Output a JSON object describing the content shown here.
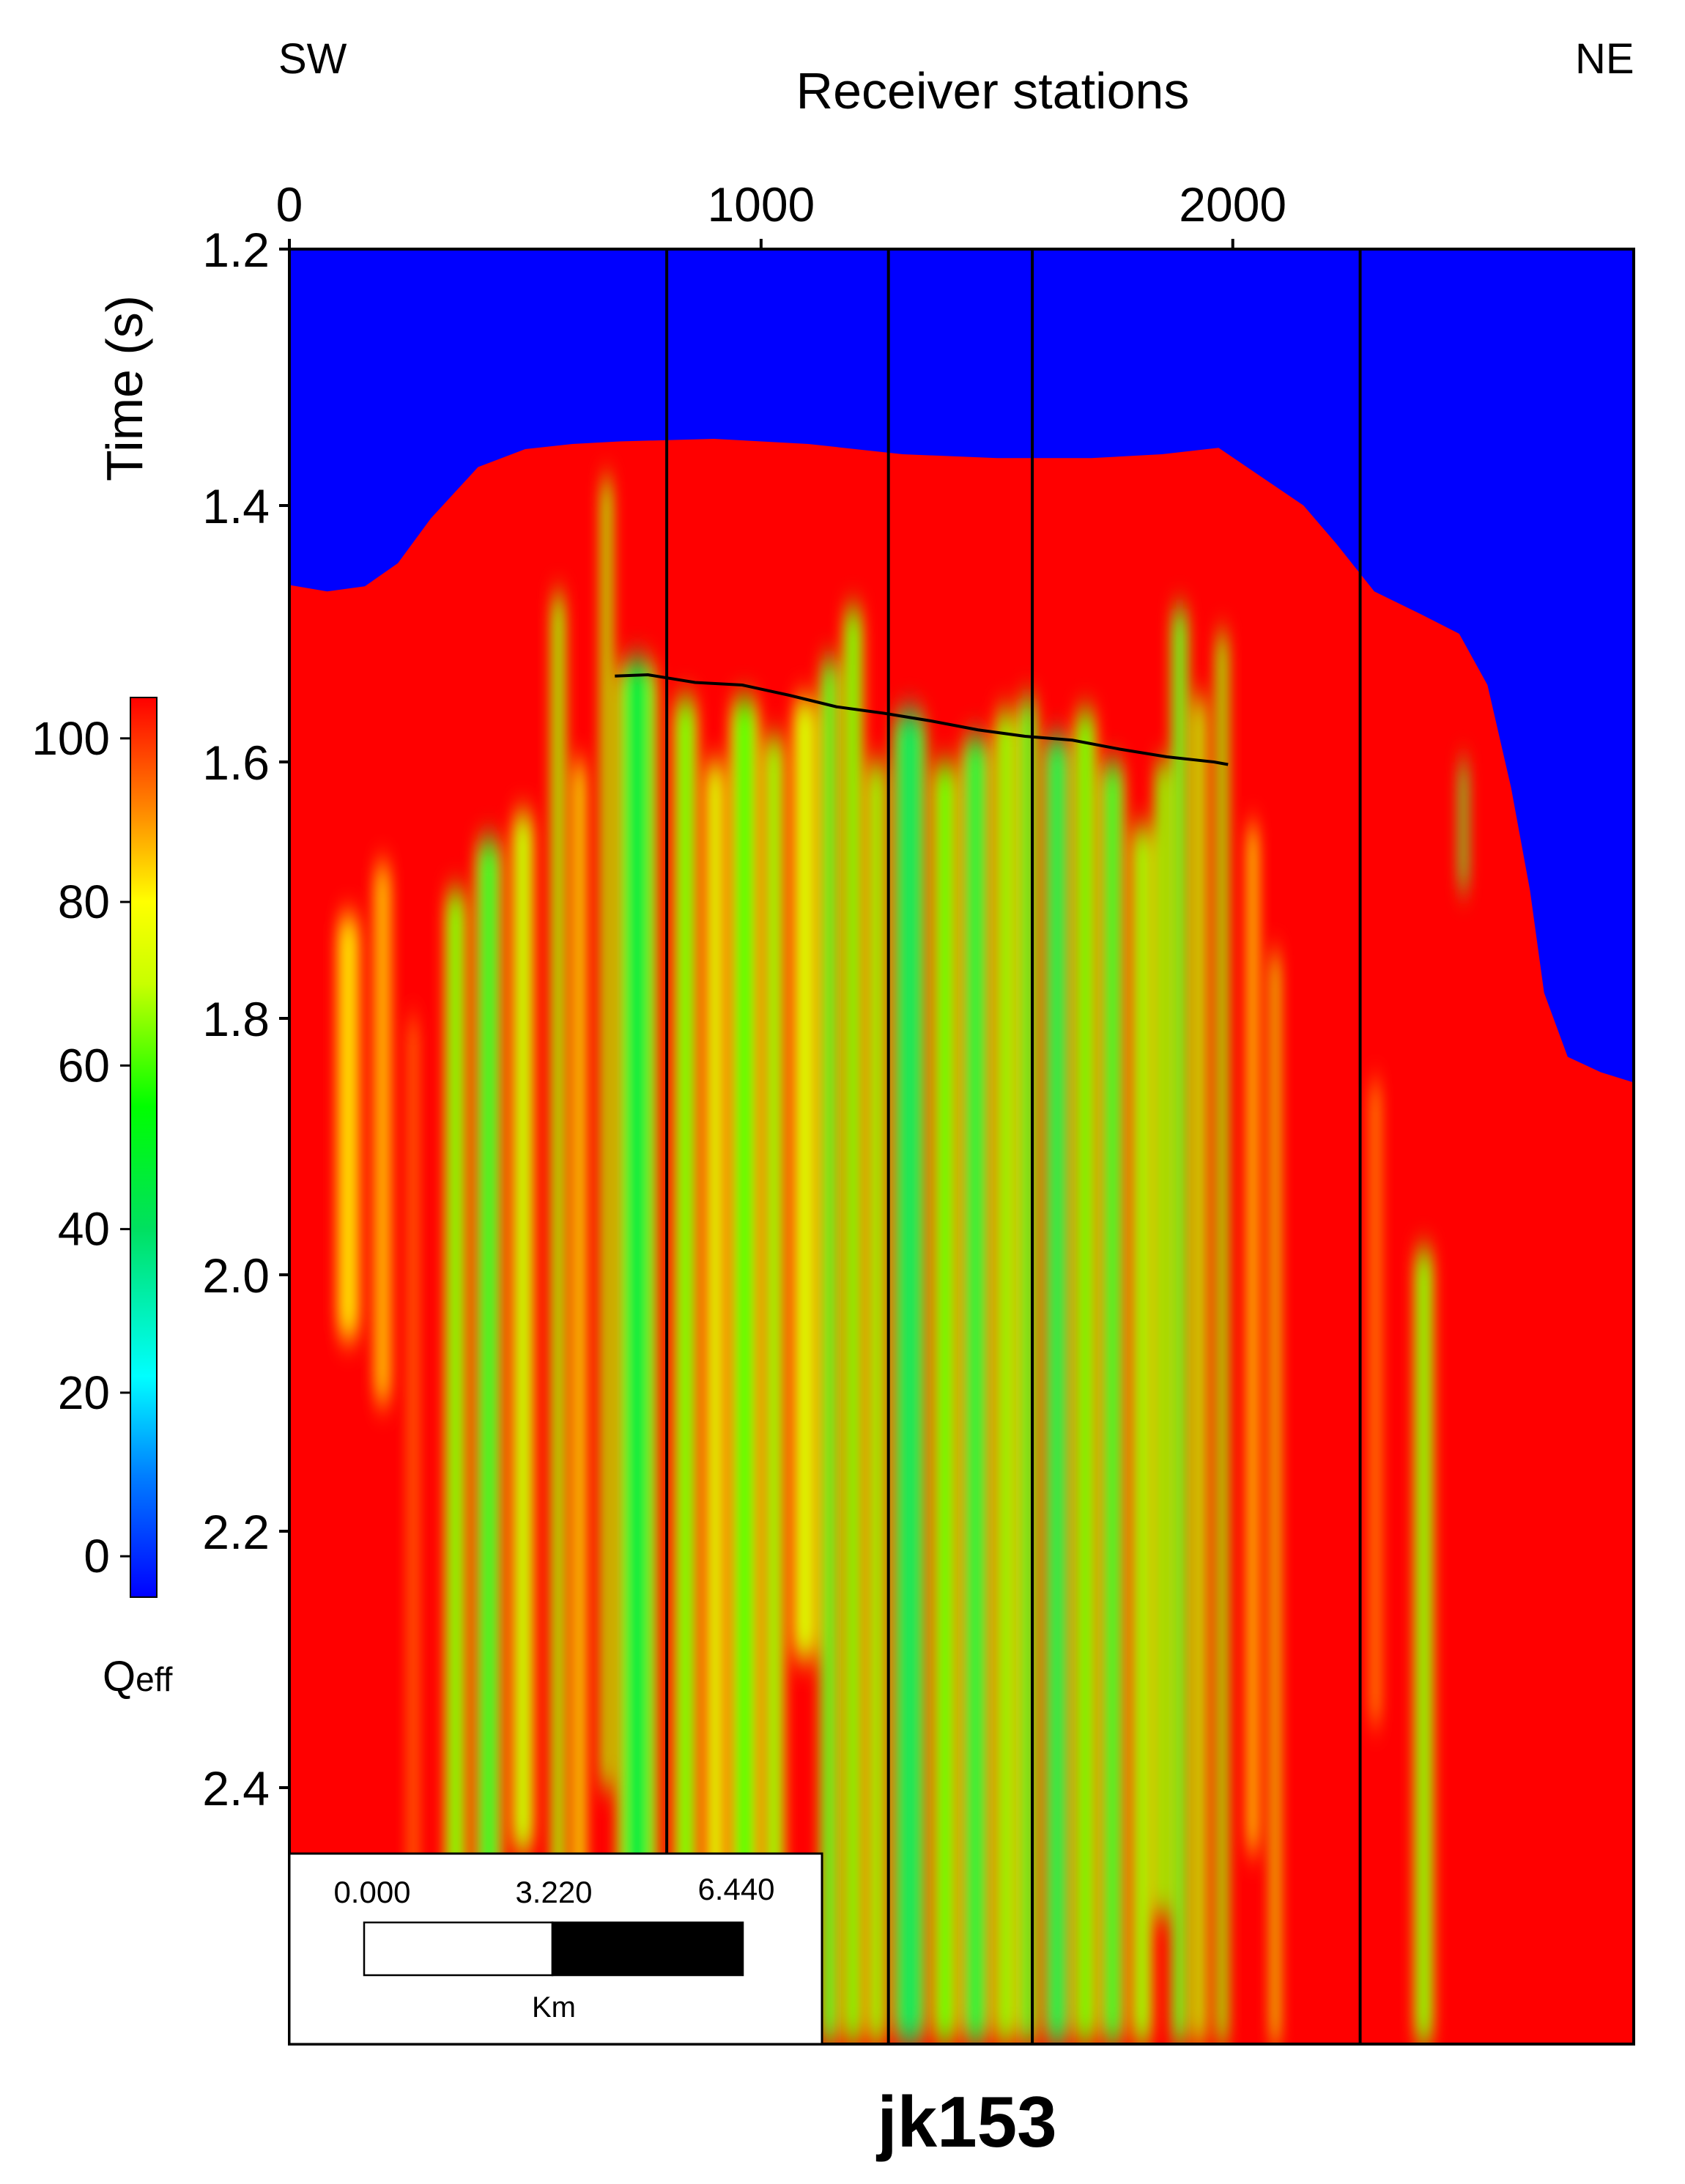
{
  "chart_data": {
    "type": "heatmap",
    "title": "jk153",
    "xlabel": "Receiver stations",
    "ylabel": "Time (s)",
    "direction_left": "SW",
    "direction_right": "NE",
    "xlim": [
      0,
      2850
    ],
    "ylim": [
      1.2,
      2.6
    ],
    "x_ticks": [
      "0",
      "1000",
      "2000"
    ],
    "y_ticks": [
      "1.2",
      "1.4",
      "1.6",
      "1.8",
      "2.0",
      "2.2",
      "2.4"
    ],
    "colorbar": {
      "label_main": "Q",
      "label_sub": "eff",
      "range": [
        -5,
        105
      ],
      "ticks": [
        "100",
        "80",
        "60",
        "40",
        "20",
        "0"
      ],
      "stops": [
        {
          "v": -5,
          "color": "#0000ff"
        },
        {
          "v": 10,
          "color": "#0080ff"
        },
        {
          "v": 22,
          "color": "#00ffff"
        },
        {
          "v": 40,
          "color": "#00e060"
        },
        {
          "v": 55,
          "color": "#00ff00"
        },
        {
          "v": 70,
          "color": "#c8ff00"
        },
        {
          "v": 80,
          "color": "#ffff00"
        },
        {
          "v": 92,
          "color": "#ff8000"
        },
        {
          "v": 105,
          "color": "#ff0000"
        }
      ]
    },
    "background_color": "#0000ff",
    "section_fill_color": "#ff0000",
    "vertical_marker_lines_x": [
      800,
      1270,
      1575,
      2270
    ],
    "top_boundary": [
      {
        "x": 0,
        "t": 1.462
      },
      {
        "x": 80,
        "t": 1.467
      },
      {
        "x": 160,
        "t": 1.463
      },
      {
        "x": 230,
        "t": 1.445
      },
      {
        "x": 300,
        "t": 1.41
      },
      {
        "x": 400,
        "t": 1.37
      },
      {
        "x": 500,
        "t": 1.356
      },
      {
        "x": 600,
        "t": 1.352
      },
      {
        "x": 700,
        "t": 1.35
      },
      {
        "x": 900,
        "t": 1.348
      },
      {
        "x": 1100,
        "t": 1.352
      },
      {
        "x": 1300,
        "t": 1.36
      },
      {
        "x": 1500,
        "t": 1.363
      },
      {
        "x": 1700,
        "t": 1.363
      },
      {
        "x": 1850,
        "t": 1.36
      },
      {
        "x": 1970,
        "t": 1.355
      },
      {
        "x": 2050,
        "t": 1.375
      },
      {
        "x": 2150,
        "t": 1.4
      },
      {
        "x": 2220,
        "t": 1.43
      },
      {
        "x": 2300,
        "t": 1.467
      },
      {
        "x": 2400,
        "t": 1.485
      },
      {
        "x": 2480,
        "t": 1.5
      },
      {
        "x": 2540,
        "t": 1.54
      },
      {
        "x": 2590,
        "t": 1.62
      },
      {
        "x": 2630,
        "t": 1.7
      },
      {
        "x": 2660,
        "t": 1.78
      },
      {
        "x": 2710,
        "t": 1.83
      },
      {
        "x": 2780,
        "t": 1.842
      },
      {
        "x": 2850,
        "t": 1.85
      }
    ],
    "horizon_line": [
      {
        "x": 690,
        "t": 1.533
      },
      {
        "x": 760,
        "t": 1.532
      },
      {
        "x": 860,
        "t": 1.538
      },
      {
        "x": 960,
        "t": 1.54
      },
      {
        "x": 1060,
        "t": 1.548
      },
      {
        "x": 1160,
        "t": 1.557
      },
      {
        "x": 1260,
        "t": 1.562
      },
      {
        "x": 1360,
        "t": 1.568
      },
      {
        "x": 1460,
        "t": 1.575
      },
      {
        "x": 1560,
        "t": 1.58
      },
      {
        "x": 1660,
        "t": 1.583
      },
      {
        "x": 1760,
        "t": 1.59
      },
      {
        "x": 1860,
        "t": 1.596
      },
      {
        "x": 1960,
        "t": 1.6
      },
      {
        "x": 1990,
        "t": 1.602
      }
    ],
    "low_q_columns": [
      {
        "x": 95,
        "w": 60,
        "t0": 1.72,
        "t1": 2.05,
        "q": 82
      },
      {
        "x": 175,
        "w": 45,
        "t0": 1.68,
        "t1": 2.1,
        "q": 85
      },
      {
        "x": 250,
        "w": 25,
        "t0": 1.8,
        "t1": 2.55,
        "q": 92
      },
      {
        "x": 330,
        "w": 45,
        "t0": 1.7,
        "t1": 2.6,
        "q": 58
      },
      {
        "x": 395,
        "w": 55,
        "t0": 1.66,
        "t1": 2.6,
        "q": 48
      },
      {
        "x": 470,
        "w": 50,
        "t0": 1.64,
        "t1": 2.45,
        "q": 68
      },
      {
        "x": 555,
        "w": 30,
        "t0": 1.47,
        "t1": 2.6,
        "q": 60
      },
      {
        "x": 600,
        "w": 30,
        "t0": 1.6,
        "t1": 2.6,
        "q": 75
      },
      {
        "x": 660,
        "w": 25,
        "t0": 1.38,
        "t1": 2.4,
        "q": 62
      },
      {
        "x": 695,
        "w": 85,
        "t0": 1.52,
        "t1": 2.6,
        "q": 45
      },
      {
        "x": 815,
        "w": 50,
        "t0": 1.55,
        "t1": 2.6,
        "q": 58
      },
      {
        "x": 880,
        "w": 45,
        "t0": 1.6,
        "t1": 2.6,
        "q": 70
      },
      {
        "x": 935,
        "w": 60,
        "t0": 1.55,
        "t1": 2.5,
        "q": 55
      },
      {
        "x": 1005,
        "w": 45,
        "t0": 1.58,
        "t1": 2.6,
        "q": 62
      },
      {
        "x": 1065,
        "w": 55,
        "t0": 1.55,
        "t1": 2.3,
        "q": 70
      },
      {
        "x": 1125,
        "w": 40,
        "t0": 1.52,
        "t1": 2.6,
        "q": 50
      },
      {
        "x": 1175,
        "w": 40,
        "t0": 1.48,
        "t1": 2.6,
        "q": 55
      },
      {
        "x": 1225,
        "w": 40,
        "t0": 1.6,
        "t1": 2.6,
        "q": 60
      },
      {
        "x": 1280,
        "w": 70,
        "t0": 1.56,
        "t1": 2.6,
        "q": 40
      },
      {
        "x": 1365,
        "w": 50,
        "t0": 1.6,
        "t1": 2.6,
        "q": 55
      },
      {
        "x": 1425,
        "w": 60,
        "t0": 1.58,
        "t1": 2.6,
        "q": 45
      },
      {
        "x": 1495,
        "w": 45,
        "t0": 1.56,
        "t1": 2.6,
        "q": 60
      },
      {
        "x": 1545,
        "w": 40,
        "t0": 1.55,
        "t1": 2.6,
        "q": 50
      },
      {
        "x": 1600,
        "w": 55,
        "t0": 1.58,
        "t1": 2.6,
        "q": 42
      },
      {
        "x": 1665,
        "w": 45,
        "t0": 1.56,
        "t1": 2.6,
        "q": 55
      },
      {
        "x": 1720,
        "w": 50,
        "t0": 1.6,
        "t1": 2.6,
        "q": 48
      },
      {
        "x": 1785,
        "w": 45,
        "t0": 1.65,
        "t1": 2.6,
        "q": 62
      },
      {
        "x": 1835,
        "w": 30,
        "t0": 1.6,
        "t1": 2.5,
        "q": 55
      },
      {
        "x": 1870,
        "w": 35,
        "t0": 1.48,
        "t1": 2.6,
        "q": 50
      },
      {
        "x": 1915,
        "w": 30,
        "t0": 1.55,
        "t1": 2.6,
        "q": 65
      },
      {
        "x": 1965,
        "w": 25,
        "t0": 1.5,
        "t1": 2.6,
        "q": 58
      },
      {
        "x": 2030,
        "w": 25,
        "t0": 1.65,
        "t1": 2.45,
        "q": 78
      },
      {
        "x": 2080,
        "w": 20,
        "t0": 1.75,
        "t1": 2.6,
        "q": 70
      },
      {
        "x": 2290,
        "w": 25,
        "t0": 1.85,
        "t1": 2.35,
        "q": 88
      },
      {
        "x": 2385,
        "w": 40,
        "t0": 1.98,
        "t1": 2.6,
        "q": 58
      },
      {
        "x": 2480,
        "w": 18,
        "t0": 1.6,
        "t1": 1.7,
        "q": 45
      }
    ],
    "scale_bar": {
      "labels": [
        "0.000",
        "3.220",
        "6.440"
      ],
      "unit": "Km"
    }
  }
}
